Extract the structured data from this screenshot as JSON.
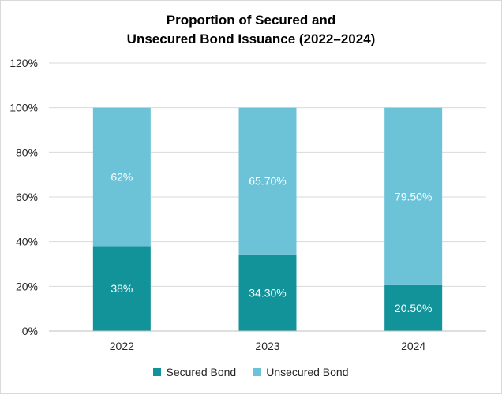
{
  "chart_data": {
    "type": "bar",
    "stacked": true,
    "title_line1": "Proportion of Secured and",
    "title_line2": "Unsecured Bond Issuance (2022–2024)",
    "categories": [
      "2022",
      "2023",
      "2024"
    ],
    "series": [
      {
        "name": "Secured Bond",
        "values": [
          38,
          34.3,
          20.5
        ],
        "labels": [
          "38%",
          "34.30%",
          "20.50%"
        ],
        "color": "#12939a"
      },
      {
        "name": "Unsecured Bond",
        "values": [
          62,
          65.7,
          79.5
        ],
        "labels": [
          "62%",
          "65.70%",
          "79.50%"
        ],
        "color": "#6cc3d8"
      }
    ],
    "ylim": [
      0,
      120
    ],
    "yticks": [
      "0%",
      "20%",
      "40%",
      "60%",
      "80%",
      "100%",
      "120%"
    ],
    "grid": true,
    "legend_position": "bottom"
  }
}
